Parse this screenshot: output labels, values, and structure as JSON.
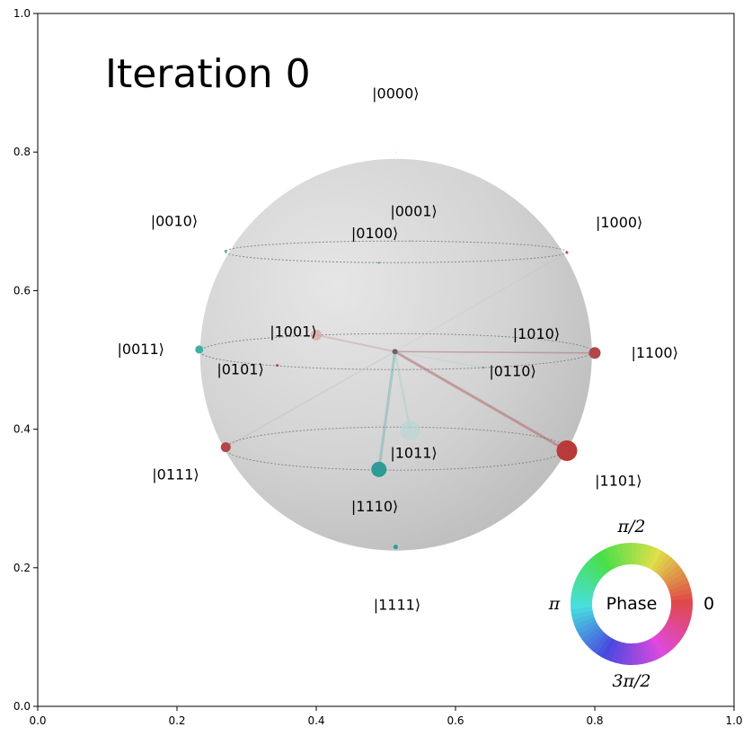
{
  "chart_data": {
    "type": "scatter",
    "title": "Iteration 0",
    "xlim": [
      0.0,
      1.0
    ],
    "ylim": [
      0.0,
      1.0
    ],
    "x_ticks": [
      "0.0",
      "0.2",
      "0.4",
      "0.6",
      "0.8",
      "1.0"
    ],
    "y_ticks": [
      "0.0",
      "0.2",
      "0.4",
      "0.6",
      "0.8",
      "1.0"
    ],
    "grid": false,
    "center": {
      "x": 0.513,
      "y": 0.512
    },
    "states": [
      {
        "label": "|0000⟩",
        "label_x": 0.514,
        "label_y": 0.884,
        "x": 0.514,
        "y": 0.8,
        "size": 0.4,
        "color": "#3fb0a8",
        "alpha": 0.8
      },
      {
        "label": "|0001⟩",
        "label_x": 0.54,
        "label_y": 0.714,
        "x": 0.536,
        "y": 0.672,
        "size": 1.2,
        "color": "#7fcdc8",
        "alpha": 0.6
      },
      {
        "label": "|0010⟩",
        "label_x": 0.196,
        "label_y": 0.7,
        "x": 0.27,
        "y": 0.657,
        "size": 1.5,
        "color": "#3fb0a8",
        "alpha": 1
      },
      {
        "label": "|0011⟩",
        "label_x": 0.148,
        "label_y": 0.515,
        "x": 0.232,
        "y": 0.515,
        "size": 4.5,
        "color": "#3fb0a8",
        "alpha": 1
      },
      {
        "label": "|0100⟩",
        "label_x": 0.484,
        "label_y": 0.682,
        "x": 0.49,
        "y": 0.64,
        "size": 1.0,
        "color": "#2e9c95",
        "alpha": 1
      },
      {
        "label": "|0101⟩",
        "label_x": 0.291,
        "label_y": 0.486,
        "x": 0.344,
        "y": 0.492,
        "size": 1.5,
        "color": "#b34747",
        "alpha": 1
      },
      {
        "label": "|0110⟩",
        "label_x": 0.682,
        "label_y": 0.483,
        "x": 0.64,
        "y": 0.489,
        "size": 1.0,
        "color": "#2e9c95",
        "alpha": 1
      },
      {
        "label": "|0111⟩",
        "label_x": 0.198,
        "label_y": 0.334,
        "x": 0.27,
        "y": 0.374,
        "size": 5.5,
        "color": "#b34747",
        "alpha": 1
      },
      {
        "label": "|1000⟩",
        "label_x": 0.835,
        "label_y": 0.698,
        "x": 0.76,
        "y": 0.655,
        "size": 1.5,
        "color": "#b34747",
        "alpha": 1
      },
      {
        "label": "|1001⟩",
        "label_x": 0.367,
        "label_y": 0.54,
        "x": 0.4,
        "y": 0.536,
        "size": 6.0,
        "color": "#d8a8a8",
        "alpha": 0.8
      },
      {
        "label": "|1010⟩",
        "label_x": 0.716,
        "label_y": 0.537,
        "x": 0.716,
        "y": 0.537,
        "size": 0,
        "color": "#b34747",
        "alpha": 1
      },
      {
        "label": "|1011⟩",
        "label_x": 0.54,
        "label_y": 0.365,
        "x": 0.535,
        "y": 0.398,
        "size": 11.0,
        "color": "#b9d6d4",
        "alpha": 0.7
      },
      {
        "label": "|1100⟩",
        "label_x": 0.886,
        "label_y": 0.51,
        "x": 0.8,
        "y": 0.51,
        "size": 6.5,
        "color": "#b34747",
        "alpha": 1
      },
      {
        "label": "|1101⟩",
        "label_x": 0.834,
        "label_y": 0.325,
        "x": 0.76,
        "y": 0.369,
        "size": 11.5,
        "color": "#b83a3a",
        "alpha": 1
      },
      {
        "label": "|1110⟩",
        "label_x": 0.484,
        "label_y": 0.288,
        "x": 0.49,
        "y": 0.342,
        "size": 8.5,
        "color": "#2e9c95",
        "alpha": 1
      },
      {
        "label": "|1111⟩",
        "label_x": 0.516,
        "label_y": 0.146,
        "x": 0.514,
        "y": 0.23,
        "size": 2.5,
        "color": "#2e9c95",
        "alpha": 1
      }
    ],
    "lines": [
      {
        "to": "|1101⟩",
        "color": "#b06a6a",
        "alpha": 0.55,
        "width": 3
      },
      {
        "to": "|1110⟩",
        "color": "#4aa6a0",
        "alpha": 0.35,
        "width": 3
      },
      {
        "to": "|1011⟩",
        "color": "#9ccac6",
        "alpha": 0.35,
        "width": 2.5
      },
      {
        "to": "|1001⟩",
        "color": "#c08a8a",
        "alpha": 0.35,
        "width": 2
      },
      {
        "to": "|1100⟩",
        "color": "#b06a6a",
        "alpha": 0.5,
        "width": 1.5
      },
      {
        "to": "|0111⟩",
        "color": "#c9a9a9",
        "alpha": 0.35,
        "width": 1.2
      },
      {
        "to": "|0110⟩",
        "color": "#7fbfbf",
        "alpha": 0.25,
        "width": 0.8
      },
      {
        "to": "|1000⟩",
        "color": "#c9a9a9",
        "alpha": 0.25,
        "width": 0.8
      }
    ],
    "phase_wheel": {
      "center_label": "Phase",
      "label_0": "0",
      "label_pi_half": "π/2",
      "label_pi": "π",
      "label_3pi_half": "3π/2"
    },
    "colors": {
      "positive_phase": "#b34747",
      "negative_phase": "#3fb0a8",
      "sphere": "#cfcfcf"
    }
  }
}
